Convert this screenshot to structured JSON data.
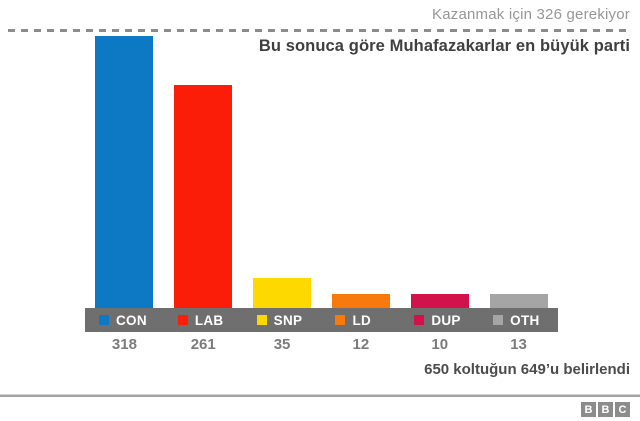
{
  "header": {
    "threshold_note": "Kazanmak için 326 gerekiyor",
    "subtitle": "Bu sonuca göre Muhafazakarlar en büyük parti"
  },
  "chart_data": {
    "type": "bar",
    "categories": [
      "CON",
      "LAB",
      "SNP",
      "LD",
      "DUP",
      "OTH"
    ],
    "values": [
      318,
      261,
      35,
      12,
      10,
      13
    ],
    "series_colors": [
      "#0d78c4",
      "#fb1d08",
      "#fed900",
      "#f97a0c",
      "#d2124a",
      "#a5a5a5"
    ],
    "title": "Bu sonuca göre Muhafazakarlar en büyük parti",
    "threshold_value": 326,
    "threshold_label": "Kazanmak için 326 gerekiyor",
    "xlabel": "",
    "ylabel": "",
    "ylim": [
      0,
      318
    ],
    "grid": false,
    "legend_position": "bottom",
    "value_labels_position": "below-legend"
  },
  "footer": {
    "note": "650 koltuğun 649’u belirlendi",
    "logo_letters": [
      "B",
      "B",
      "C"
    ]
  },
  "colors": {
    "legend_bg": "#6f6f6f",
    "threshold_text": "#979797",
    "dashed_line": "#8c8c8c",
    "subtitle_text": "#3f3f3f",
    "value_text": "#7b7b7b",
    "note_text": "#4c4c4c",
    "rule": "#a3a3a3",
    "logo_bg": "#8c8c8c"
  }
}
